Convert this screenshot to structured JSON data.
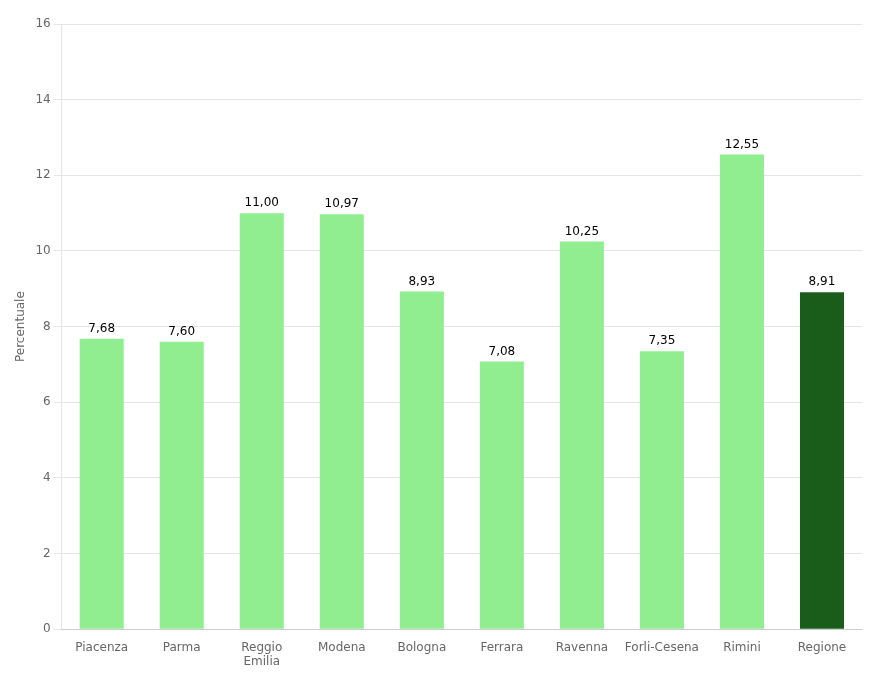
{
  "chart_data": {
    "type": "bar",
    "categories": [
      "Piacenza",
      "Parma",
      "Reggio\nEmilia",
      "Modena",
      "Bologna",
      "Ferrara",
      "Ravenna",
      "Forli-Cesena",
      "Rimini",
      "Regione"
    ],
    "values": [
      7.68,
      7.6,
      11.0,
      10.97,
      8.93,
      7.08,
      10.25,
      7.35,
      12.55,
      8.91
    ],
    "value_labels": [
      "7,68",
      "7,60",
      "11,00",
      "10,97",
      "8,93",
      "7,08",
      "10,25",
      "7,35",
      "12,55",
      "8,91"
    ],
    "data_labels": true,
    "colors": [
      "#90EE90",
      "#90EE90",
      "#90EE90",
      "#90EE90",
      "#90EE90",
      "#90EE90",
      "#90EE90",
      "#90EE90",
      "#90EE90",
      "#1a5c1a"
    ],
    "ylabel": "Percentuale",
    "ylim": [
      0,
      16
    ],
    "yticks": [
      0,
      2,
      4,
      6,
      8,
      10,
      12,
      14,
      16
    ],
    "grid": true
  }
}
